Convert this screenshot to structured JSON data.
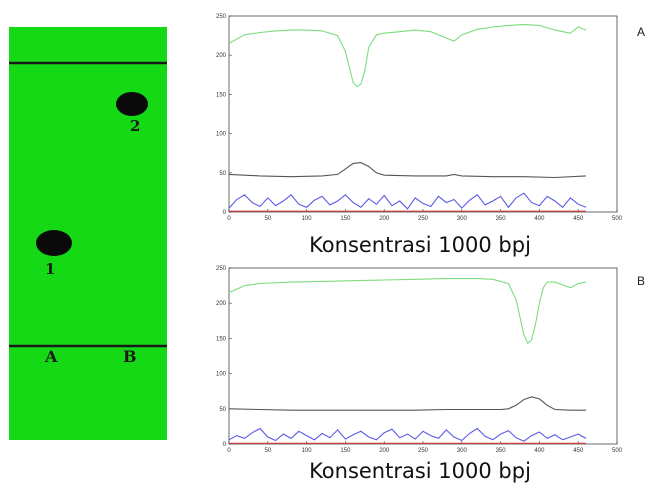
{
  "tlc": {
    "colors": {
      "plate": "#19e619",
      "plate_dark": "#0fb50f",
      "spot": "#0a0a0a",
      "line": "#1a1a1a"
    },
    "spot_labels": [
      "1",
      "2"
    ],
    "lane_labels": [
      "A",
      "B"
    ]
  },
  "panel_labels": [
    "A",
    "B"
  ],
  "captions": [
    "Konsentrasi 1000 bpj",
    "Konsentrasi 1000 bpj"
  ],
  "chart_data": [
    {
      "type": "line",
      "panel": "A",
      "title": "",
      "xlabel": "",
      "ylabel": "",
      "xlim": [
        0,
        500
      ],
      "ylim": [
        0,
        250
      ],
      "xticks": [
        0,
        50,
        100,
        150,
        200,
        250,
        300,
        350,
        400,
        450,
        500
      ],
      "yticks": [
        0,
        50,
        100,
        150,
        200,
        250
      ],
      "grid": false,
      "series": [
        {
          "color": "#7ddc7d",
          "x": [
            0,
            20,
            40,
            60,
            80,
            100,
            120,
            140,
            150,
            155,
            160,
            165,
            170,
            175,
            180,
            190,
            200,
            220,
            240,
            260,
            280,
            290,
            300,
            320,
            340,
            360,
            380,
            400,
            420,
            440,
            450,
            460
          ],
          "y": [
            215,
            226,
            229,
            231,
            232,
            232,
            231,
            225,
            205,
            185,
            165,
            160,
            163,
            180,
            210,
            226,
            228,
            230,
            232,
            230,
            222,
            218,
            226,
            233,
            236,
            238,
            239,
            238,
            232,
            228,
            236,
            232
          ]
        },
        {
          "color": "#555555",
          "x": [
            0,
            40,
            80,
            120,
            140,
            150,
            160,
            170,
            180,
            190,
            200,
            240,
            280,
            290,
            300,
            340,
            380,
            420,
            460
          ],
          "y": [
            48,
            46,
            45,
            46,
            48,
            55,
            62,
            63,
            58,
            50,
            47,
            46,
            46,
            48,
            46,
            45,
            45,
            44,
            46
          ]
        },
        {
          "color": "#5a5ae6",
          "x": [
            0,
            10,
            20,
            30,
            40,
            50,
            60,
            70,
            80,
            90,
            100,
            110,
            120,
            130,
            140,
            150,
            160,
            170,
            180,
            190,
            200,
            210,
            220,
            230,
            240,
            250,
            260,
            270,
            280,
            290,
            300,
            310,
            320,
            330,
            340,
            350,
            360,
            370,
            380,
            390,
            400,
            410,
            420,
            430,
            440,
            450,
            460
          ],
          "y": [
            5,
            16,
            22,
            12,
            7,
            18,
            8,
            14,
            22,
            10,
            6,
            15,
            20,
            9,
            14,
            22,
            12,
            6,
            17,
            10,
            21,
            8,
            14,
            4,
            18,
            11,
            7,
            20,
            12,
            16,
            5,
            15,
            22,
            9,
            14,
            20,
            6,
            18,
            24,
            12,
            8,
            20,
            14,
            6,
            18,
            10,
            6
          ]
        },
        {
          "color": "#d23c3c",
          "x": [
            0,
            460
          ],
          "y": [
            1,
            1
          ]
        }
      ]
    },
    {
      "type": "line",
      "panel": "B",
      "title": "",
      "xlabel": "",
      "ylabel": "",
      "xlim": [
        0,
        500
      ],
      "ylim": [
        0,
        250
      ],
      "xticks": [
        0,
        50,
        100,
        150,
        200,
        250,
        300,
        350,
        400,
        450,
        500
      ],
      "yticks": [
        0,
        50,
        100,
        150,
        200,
        250
      ],
      "grid": false,
      "series": [
        {
          "color": "#7ddc7d",
          "x": [
            0,
            20,
            40,
            80,
            120,
            160,
            200,
            240,
            280,
            320,
            340,
            360,
            370,
            375,
            380,
            385,
            390,
            395,
            400,
            405,
            410,
            420,
            430,
            440,
            450,
            460
          ],
          "y": [
            215,
            225,
            228,
            230,
            231,
            232,
            233,
            234,
            235,
            235,
            234,
            228,
            205,
            180,
            155,
            143,
            148,
            170,
            200,
            222,
            230,
            230,
            226,
            222,
            228,
            230
          ]
        },
        {
          "color": "#555555",
          "x": [
            0,
            40,
            80,
            120,
            160,
            200,
            240,
            280,
            320,
            350,
            360,
            370,
            380,
            390,
            400,
            410,
            420,
            440,
            460
          ],
          "y": [
            50,
            49,
            48,
            48,
            48,
            48,
            48,
            49,
            49,
            49,
            50,
            55,
            63,
            67,
            64,
            55,
            49,
            48,
            48
          ]
        },
        {
          "color": "#5a5ae6",
          "x": [
            0,
            10,
            20,
            30,
            40,
            50,
            60,
            70,
            80,
            90,
            100,
            110,
            120,
            130,
            140,
            150,
            160,
            170,
            180,
            190,
            200,
            210,
            220,
            230,
            240,
            250,
            260,
            270,
            280,
            290,
            300,
            310,
            320,
            330,
            340,
            350,
            360,
            370,
            380,
            390,
            400,
            410,
            420,
            430,
            440,
            450,
            460
          ],
          "y": [
            6,
            12,
            8,
            16,
            22,
            10,
            5,
            14,
            8,
            18,
            12,
            6,
            15,
            9,
            20,
            7,
            13,
            18,
            10,
            6,
            16,
            21,
            9,
            14,
            7,
            18,
            12,
            8,
            20,
            10,
            5,
            15,
            22,
            11,
            6,
            14,
            19,
            9,
            4,
            12,
            17,
            8,
            13,
            6,
            10,
            14,
            8
          ]
        },
        {
          "color": "#d23c3c",
          "x": [
            0,
            460
          ],
          "y": [
            1,
            1
          ]
        }
      ]
    }
  ]
}
